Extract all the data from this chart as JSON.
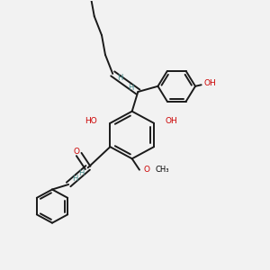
{
  "background_color": "#f2f2f2",
  "bond_color": "#1a1a1a",
  "O_color": "#cc0000",
  "H_color": "#4a9090",
  "lw": 1.4,
  "dbl_off": 0.008,
  "fig_size": [
    3.0,
    3.0
  ],
  "dpi": 100,
  "xlim": [
    0.05,
    0.95
  ],
  "ylim": [
    0.02,
    0.98
  ]
}
